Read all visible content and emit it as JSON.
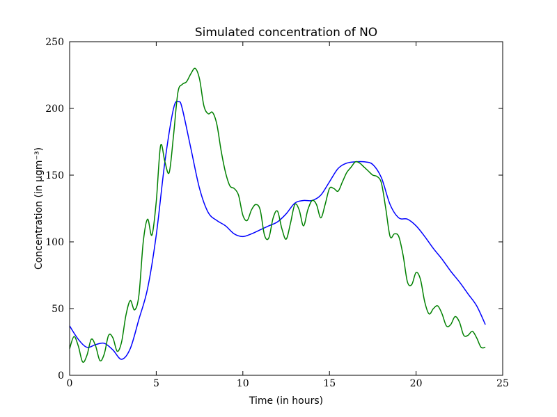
{
  "chart_data": {
    "type": "line",
    "title": "Simulated concentration of NO",
    "x_label": "Time (in hours)",
    "y_label": "Concentration (in μgm⁻³)",
    "xlim": [
      0,
      25
    ],
    "ylim": [
      0,
      250
    ],
    "xticks": [
      0,
      5,
      10,
      15,
      20,
      25
    ],
    "yticks": [
      0,
      50,
      100,
      150,
      200,
      250
    ],
    "series": [
      {
        "color": "#0000ff",
        "x": [
          0,
          0.5,
          1,
          1.5,
          2,
          2.5,
          3,
          3.5,
          4,
          4.5,
          5,
          5.5,
          6,
          6.3,
          6.5,
          7,
          7.5,
          8,
          8.5,
          9,
          9.5,
          10,
          10.5,
          11,
          11.5,
          12,
          12.5,
          13,
          13.5,
          14,
          14.5,
          15,
          15.5,
          16,
          16.5,
          17,
          17.5,
          18,
          18.5,
          19,
          19.5,
          20,
          20.5,
          21,
          21.5,
          22,
          22.5,
          23,
          23.5,
          24
        ],
        "values": [
          37,
          27,
          21,
          23,
          24,
          19,
          12,
          20,
          42,
          65,
          105,
          160,
          200,
          205,
          200,
          170,
          140,
          122,
          116,
          112,
          106,
          104,
          106,
          109,
          112,
          115,
          121,
          129,
          131,
          131,
          135,
          145,
          155,
          159,
          160,
          160,
          158,
          148,
          128,
          118,
          117,
          112,
          104,
          95,
          87,
          78,
          70,
          61,
          52,
          38
        ]
      },
      {
        "color": "#008000",
        "x": [
          0,
          0.25,
          0.5,
          0.75,
          1,
          1.25,
          1.5,
          1.75,
          2,
          2.25,
          2.5,
          2.75,
          3,
          3.25,
          3.5,
          3.75,
          4,
          4.25,
          4.5,
          4.75,
          5,
          5.25,
          5.5,
          5.75,
          6,
          6.25,
          6.5,
          6.75,
          7,
          7.25,
          7.5,
          7.75,
          8,
          8.25,
          8.5,
          8.75,
          9,
          9.25,
          9.5,
          9.75,
          10,
          10.25,
          10.5,
          10.75,
          11,
          11.25,
          11.5,
          11.75,
          12,
          12.25,
          12.5,
          12.75,
          13,
          13.25,
          13.5,
          13.75,
          14,
          14.25,
          14.5,
          14.75,
          15,
          15.25,
          15.5,
          15.75,
          16,
          16.25,
          16.5,
          16.75,
          17,
          17.25,
          17.5,
          17.75,
          18,
          18.25,
          18.5,
          18.75,
          19,
          19.25,
          19.5,
          19.75,
          20,
          20.25,
          20.5,
          20.75,
          21,
          21.25,
          21.5,
          21.75,
          22,
          22.25,
          22.5,
          22.75,
          23,
          23.25,
          23.5,
          23.75,
          24
        ],
        "values": [
          20,
          29,
          22,
          10,
          15,
          27,
          22,
          11,
          16,
          30,
          28,
          18,
          25,
          45,
          56,
          49,
          60,
          100,
          117,
          105,
          130,
          172,
          160,
          152,
          180,
          212,
          218,
          220,
          226,
          230,
          222,
          202,
          196,
          197,
          188,
          168,
          152,
          142,
          140,
          135,
          120,
          116,
          124,
          128,
          124,
          105,
          103,
          118,
          123,
          110,
          102,
          114,
          128,
          124,
          112,
          124,
          131,
          128,
          118,
          128,
          140,
          140,
          138,
          145,
          152,
          156,
          160,
          159,
          156,
          153,
          150,
          149,
          144,
          125,
          104,
          106,
          104,
          90,
          70,
          68,
          77,
          72,
          55,
          46,
          50,
          52,
          46,
          37,
          38,
          44,
          40,
          30,
          30,
          33,
          28,
          21,
          21
        ]
      }
    ]
  }
}
